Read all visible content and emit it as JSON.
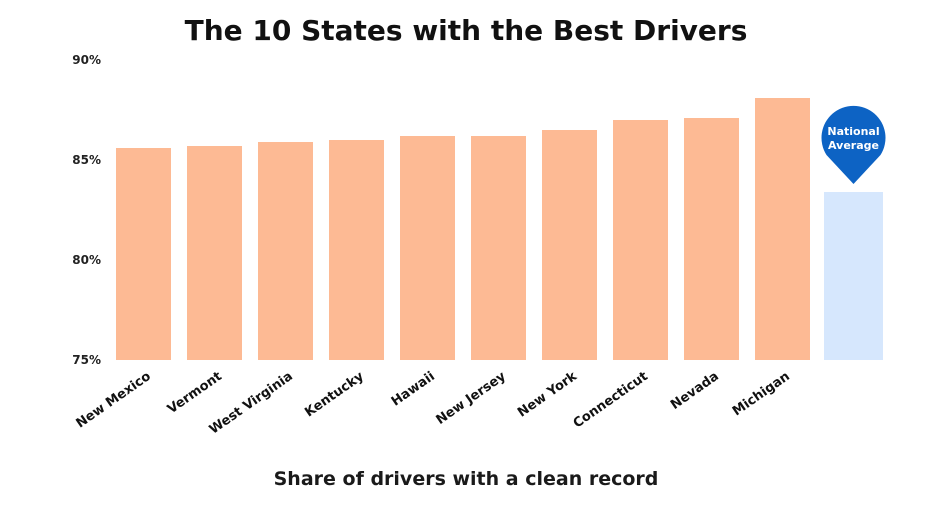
{
  "chart_data": {
    "type": "bar",
    "title": "The 10 States with the Best Drivers",
    "xlabel": "Share of drivers with a clean record",
    "ylabel": "",
    "ylim": [
      75,
      90
    ],
    "yticks": [
      "75%",
      "80%",
      "85%",
      "90%"
    ],
    "ytick_values": [
      75,
      80,
      85,
      90
    ],
    "grid": false,
    "categories": [
      "New Mexico",
      "Vermont",
      "West Virginia",
      "Kentucky",
      "Hawaii",
      "New Jersey",
      "New York",
      "Connecticut",
      "Nevada",
      "Michigan"
    ],
    "values": [
      85.6,
      85.7,
      85.9,
      86.0,
      86.2,
      86.2,
      86.5,
      87.0,
      87.1,
      88.1
    ],
    "reference": {
      "label_line1": "National",
      "label_line2": "Average",
      "value": 83.4
    },
    "colors": {
      "bar": "#FDBA94",
      "reference_bar": "#D6E7FD",
      "marker": "#0D63C4"
    }
  }
}
